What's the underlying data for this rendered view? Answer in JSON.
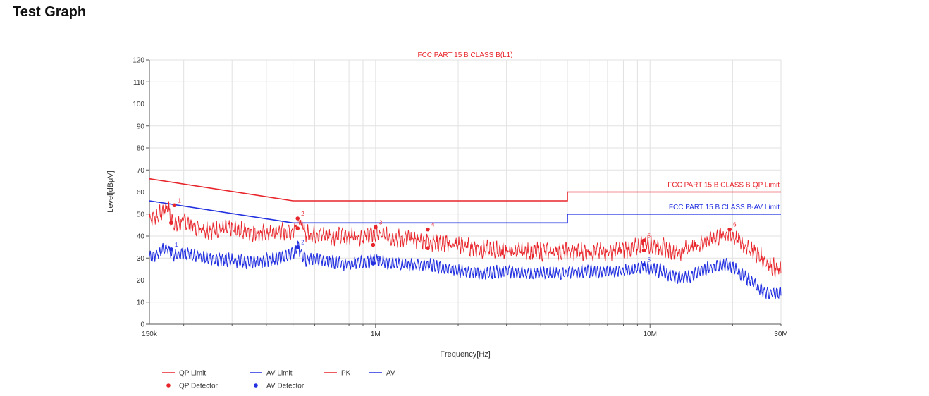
{
  "page": {
    "title": "Test Graph"
  },
  "colors": {
    "qp": "#e8252b",
    "av": "#2230e0",
    "grid": "#e2e2e2",
    "axis": "#555555"
  },
  "chart_data": {
    "type": "line",
    "title": "FCC PART 15 B CLASS B(L1)",
    "xlabel": "Frequency[Hz]",
    "ylabel": "Level[dBμV]",
    "xscale": "log",
    "xlim": [
      150000,
      30000000
    ],
    "ylim": [
      0,
      120
    ],
    "y_ticks": [
      0,
      10,
      20,
      30,
      40,
      50,
      60,
      70,
      80,
      90,
      100,
      110,
      120
    ],
    "x_ticks": [
      {
        "value": 150000,
        "label": "150k"
      },
      {
        "value": 1000000,
        "label": "1M"
      },
      {
        "value": 10000000,
        "label": "10M"
      },
      {
        "value": 30000000,
        "label": "30M"
      }
    ],
    "grid": true,
    "limit_labels": [
      {
        "series": "QP Limit",
        "text": "FCC PART 15 B CLASS B-QP Limit"
      },
      {
        "series": "AV Limit",
        "text": "FCC PART 15 B CLASS B-AV Limit"
      }
    ],
    "series": [
      {
        "name": "QP Limit",
        "color": "#e8252b",
        "style": "limit",
        "x": [
          150000,
          500000,
          500000,
          5000000,
          5000000,
          30000000
        ],
        "y": [
          66,
          56,
          56,
          56,
          60,
          60
        ]
      },
      {
        "name": "AV Limit",
        "color": "#2230e0",
        "style": "limit",
        "x": [
          150000,
          500000,
          500000,
          5000000,
          5000000,
          30000000
        ],
        "y": [
          56,
          46,
          46,
          46,
          50,
          50
        ]
      },
      {
        "name": "PK",
        "color": "#e8252b",
        "style": "trace",
        "x": [
          150000,
          165000,
          175000,
          180000,
          190000,
          200000,
          220000,
          250000,
          300000,
          350000,
          400000,
          450000,
          500000,
          520000,
          560000,
          600000,
          700000,
          800000,
          900000,
          1000000,
          1200000,
          1500000,
          1700000,
          2000000,
          2500000,
          3000000,
          3500000,
          4000000,
          5000000,
          6000000,
          7000000,
          8000000,
          9000000,
          9500000,
          10000000,
          11000000,
          12000000,
          13000000,
          14000000,
          15000000,
          17000000,
          19000000,
          20000000,
          22000000,
          24000000,
          26000000,
          28000000,
          30000000
        ],
        "y": [
          48,
          50,
          54,
          47,
          45,
          47,
          44,
          43,
          43,
          42,
          41,
          42,
          42,
          48,
          41,
          41,
          40,
          40,
          40,
          41,
          39,
          38,
          37,
          36,
          34,
          33,
          33,
          33,
          33,
          33,
          33,
          34,
          35,
          38,
          36,
          35,
          33,
          33,
          35,
          36,
          39,
          41,
          40,
          36,
          33,
          29,
          26,
          24
        ]
      },
      {
        "name": "AV",
        "color": "#2230e0",
        "style": "trace",
        "x": [
          150000,
          165000,
          175000,
          180000,
          190000,
          200000,
          220000,
          250000,
          300000,
          350000,
          400000,
          450000,
          500000,
          520000,
          560000,
          600000,
          700000,
          800000,
          900000,
          1000000,
          1200000,
          1500000,
          1700000,
          2000000,
          2500000,
          3000000,
          3500000,
          4000000,
          5000000,
          6000000,
          7000000,
          8000000,
          9000000,
          9500000,
          10000000,
          11000000,
          12000000,
          13000000,
          14000000,
          15000000,
          17000000,
          19000000,
          20000000,
          22000000,
          24000000,
          26000000,
          28000000,
          30000000
        ],
        "y": [
          30,
          33,
          35,
          32,
          31,
          32,
          31,
          30,
          29,
          28,
          29,
          30,
          32,
          35,
          29,
          30,
          28,
          27,
          28,
          29,
          27,
          27,
          26,
          24,
          23,
          24,
          23,
          23,
          23,
          24,
          24,
          24,
          25,
          26,
          25,
          24,
          22,
          21,
          22,
          24,
          26,
          27,
          26,
          22,
          18,
          15,
          14,
          14
        ]
      }
    ],
    "qp_points": [
      {
        "x": 185000,
        "y": 54.0,
        "label": "1"
      },
      {
        "x": 520000,
        "y": 48.0,
        "label": "2"
      },
      {
        "x": 1000000,
        "y": 44.0,
        "label": "3"
      },
      {
        "x": 1550000,
        "y": 43.0,
        "label": "4"
      },
      {
        "x": 9500000,
        "y": 38.0,
        "label": "5"
      },
      {
        "x": 19500000,
        "y": 43.0,
        "label": "6"
      }
    ],
    "qp_detector_points": [
      {
        "x": 180000,
        "y": 46.0
      },
      {
        "x": 520000,
        "y": 43.5
      },
      {
        "x": 980000,
        "y": 36.0
      },
      {
        "x": 1550000,
        "y": 34.5
      },
      {
        "x": 9500000,
        "y": 33.5
      }
    ],
    "av_detector_points": [
      {
        "x": 180000,
        "y": 34.0,
        "label": "1"
      },
      {
        "x": 520000,
        "y": 35.0,
        "label": "2"
      },
      {
        "x": 980000,
        "y": 27.5,
        "label": "3"
      },
      {
        "x": 9500000,
        "y": 27.0,
        "label": "5"
      }
    ],
    "legend": [
      {
        "series": "QP Limit",
        "text": "QP Limit",
        "kind": "line",
        "color": "#e8252b"
      },
      {
        "series": "AV Limit",
        "text": "AV Limit",
        "kind": "line",
        "color": "#2230e0"
      },
      {
        "series": "PK",
        "text": "PK",
        "kind": "line",
        "color": "#e8252b"
      },
      {
        "series": "AV",
        "text": "AV",
        "kind": "line",
        "color": "#2230e0"
      },
      {
        "series": "QP Detector",
        "text": "QP Detector",
        "kind": "dot",
        "color": "#e8252b"
      },
      {
        "series": "AV Detector",
        "text": "AV Detector",
        "kind": "dot",
        "color": "#2230e0"
      }
    ]
  }
}
